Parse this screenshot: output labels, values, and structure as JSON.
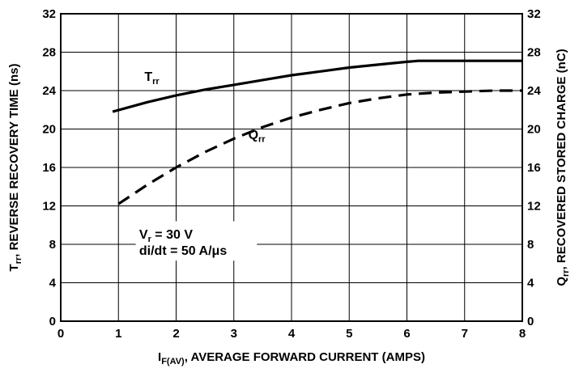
{
  "chart_data": {
    "type": "line",
    "title": "",
    "xlabel": {
      "main": "I",
      "sub": "F(AV)",
      "rest": ", AVERAGE FORWARD CURRENT (AMPS)"
    },
    "ylabel_left": {
      "main": "T",
      "sub": "rr",
      "rest": ", REVERSE RECOVERY TIME (ns)"
    },
    "ylabel_right": {
      "main": "Q",
      "sub": "rr",
      "rest": ", RECOVERED STORED CHARGE (nC)"
    },
    "xlim": [
      0,
      8
    ],
    "ylim": [
      0,
      32
    ],
    "x_ticks": [
      "0",
      "1",
      "2",
      "3",
      "4",
      "5",
      "6",
      "7",
      "8"
    ],
    "y_ticks": [
      "0",
      "4",
      "8",
      "12",
      "16",
      "20",
      "24",
      "28",
      "32"
    ],
    "grid": true,
    "series": [
      {
        "name": "Trr",
        "label_main": "T",
        "label_sub": "rr",
        "style": "solid",
        "x": [
          0.9,
          1.5,
          2.0,
          2.5,
          3.0,
          3.5,
          4.0,
          4.5,
          5.0,
          5.5,
          6.0,
          6.2,
          7.0,
          8.0
        ],
        "y": [
          21.8,
          22.8,
          23.5,
          24.1,
          24.6,
          25.1,
          25.6,
          26.0,
          26.4,
          26.7,
          27.0,
          27.1,
          27.1,
          27.1
        ]
      },
      {
        "name": "Qrr",
        "label_main": "Q",
        "label_sub": "rr",
        "style": "dashed",
        "x": [
          1.0,
          1.5,
          2.0,
          2.5,
          3.0,
          3.5,
          4.0,
          4.5,
          5.0,
          5.5,
          6.0,
          6.5,
          7.0,
          7.5,
          8.0
        ],
        "y": [
          12.2,
          14.2,
          16.0,
          17.6,
          19.0,
          20.2,
          21.2,
          22.0,
          22.7,
          23.2,
          23.6,
          23.8,
          23.9,
          24.0,
          24.0
        ]
      }
    ],
    "annotations": [
      {
        "main": "V",
        "sub": "r",
        "rest": " = 30 V"
      },
      {
        "main": "di/dt = 50 A/μs",
        "sub": "",
        "rest": ""
      }
    ]
  }
}
